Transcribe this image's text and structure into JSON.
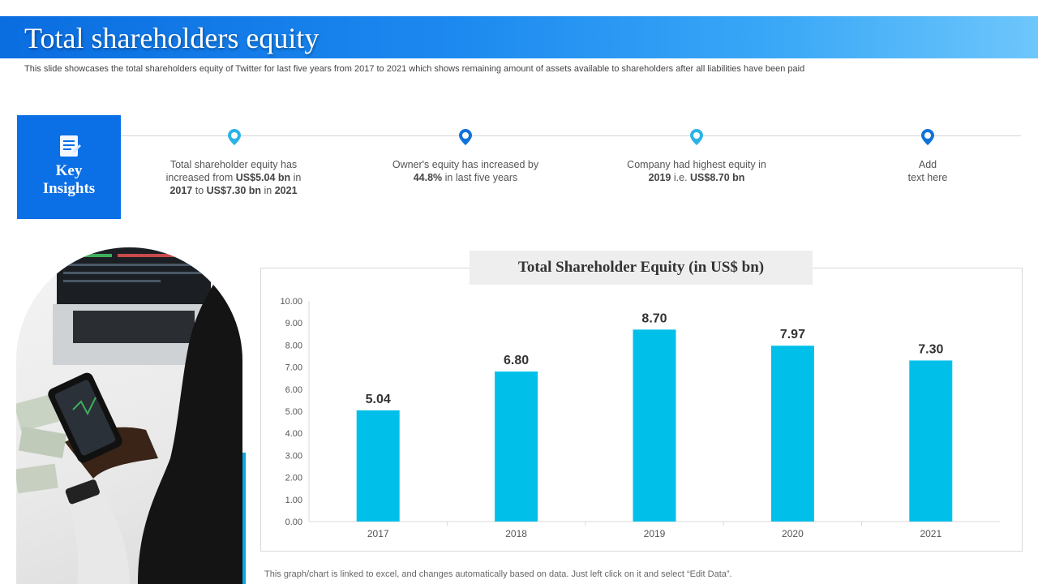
{
  "header": {
    "title": "Total shareholders equity",
    "subtitle": "This slide showcases the total shareholders equity of Twitter for last five years from 2017 to 2021 which shows remaining amount of assets available to shareholders after all liabilities have been paid"
  },
  "key_insights": {
    "label_line1": "Key",
    "label_line2": "Insights",
    "icon": "document-icon",
    "items": [
      {
        "line1_a": "Total shareholder equity has",
        "line2_a": "increased from ",
        "line2_b": "US$5.04 bn",
        "line2_c": " in",
        "line3_b": "2017",
        "line3_c": " to ",
        "line3_d": "US$7.30 bn",
        "line3_e": " in ",
        "line3_f": "2021",
        "pin_color": "#2bb3e8"
      },
      {
        "line1_a": "Owner's equity has increased by",
        "line2_b": "44.8%",
        "line2_c": " in last five years",
        "pin_color": "#1173d9"
      },
      {
        "line1_a": "Company had highest equity in",
        "line2_b": "2019",
        "line2_c": " i.e. ",
        "line2_d": "US$8.70 bn",
        "pin_color": "#2bb3e8"
      },
      {
        "line1_a": "Add",
        "line2_c": "text here",
        "pin_color": "#1173d9"
      }
    ]
  },
  "chart_data": {
    "type": "bar",
    "title": "Total Shareholder Equity (in US$ bn)",
    "categories": [
      "2017",
      "2018",
      "2019",
      "2020",
      "2021"
    ],
    "values": [
      5.04,
      6.8,
      8.7,
      7.97,
      7.3
    ],
    "value_labels": [
      "5.04",
      "6.80",
      "8.70",
      "7.97",
      "7.30"
    ],
    "ylim": [
      0,
      10
    ],
    "yticks": [
      "0.00",
      "1.00",
      "2.00",
      "3.00",
      "4.00",
      "5.00",
      "6.00",
      "7.00",
      "8.00",
      "9.00",
      "10.00"
    ],
    "bar_color": "#00c0ea",
    "grid": false,
    "legend": "none"
  },
  "footnote": "This graph/chart is linked to excel,  and changes automatically based on data. Just left click on it and select “Edit Data”.",
  "colors": {
    "accent": "#0b6fe6",
    "bar": "#00c0ea"
  }
}
